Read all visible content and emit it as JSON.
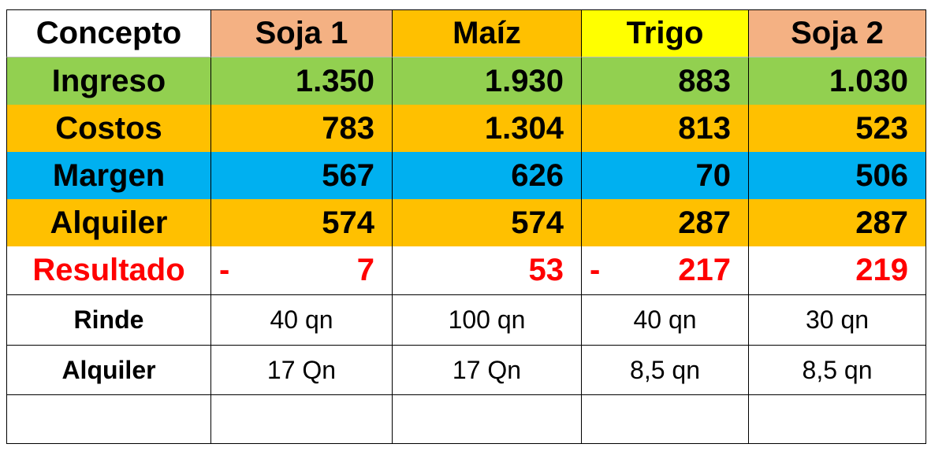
{
  "table": {
    "header": [
      "Concepto",
      "Soja 1",
      "Maíz",
      "Trigo",
      "Soja 2"
    ],
    "rows": [
      [
        "Ingreso",
        "1.350",
        "1.930",
        "883",
        "1.030"
      ],
      [
        "Costos",
        "783",
        "1.304",
        "813",
        "523"
      ],
      [
        "Margen",
        "567",
        "626",
        "70",
        "506"
      ],
      [
        "Alquiler",
        "574",
        "574",
        "287",
        "287"
      ],
      [
        "Resultado",
        {
          "sign": "-",
          "text": "7"
        },
        {
          "text": "53"
        },
        {
          "sign": "-",
          "text": "217"
        },
        {
          "text": "219"
        }
      ],
      [
        "Rinde",
        "40 qn",
        "100 qn",
        "40 qn",
        "30 qn"
      ],
      [
        "Alquiler",
        "17 Qn",
        "17 Qn",
        "8,5 qn",
        "8,5 qn"
      ]
    ]
  }
}
